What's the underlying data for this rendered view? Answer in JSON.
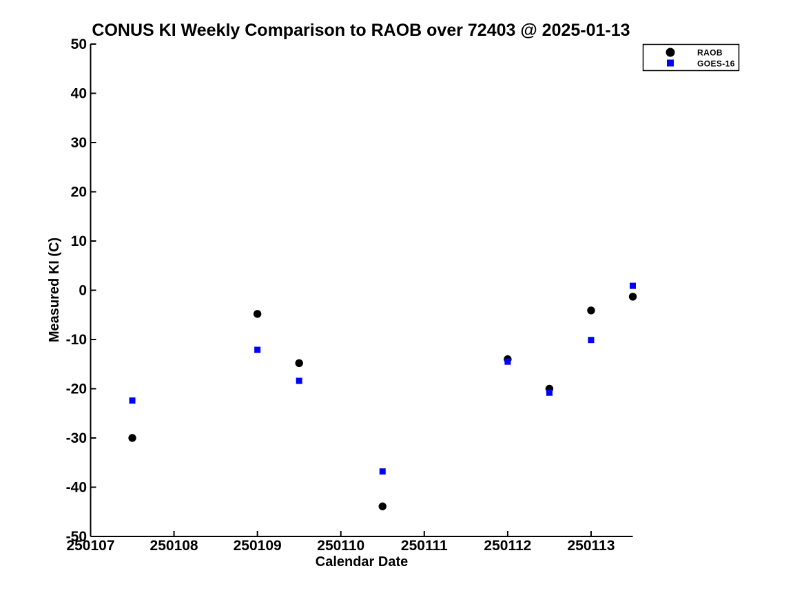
{
  "chart_data": {
    "type": "scatter",
    "title": "CONUS KI Weekly Comparison to RAOB over 72403 @ 2025-01-13",
    "xlabel": "Calendar Date",
    "ylabel": "Measured KI (C)",
    "xlim": [
      250107,
      250113.5
    ],
    "ylim": [
      -50,
      50
    ],
    "xticks": [
      250107,
      250108,
      250109,
      250110,
      250111,
      250112,
      250113
    ],
    "yticks": [
      -50,
      -40,
      -30,
      -20,
      -10,
      0,
      10,
      20,
      30,
      40,
      50
    ],
    "grid": false,
    "background_color": "#ffffff",
    "legend": {
      "position": "top-right",
      "entries": [
        {
          "label": "RAOB",
          "marker": "circle",
          "color": "#000000"
        },
        {
          "label": "GOES-16",
          "marker": "square",
          "color": "#0000ff"
        }
      ]
    },
    "series": [
      {
        "name": "RAOB",
        "marker": "circle",
        "color": "#000000",
        "points": [
          [
            250107.5,
            -30.0
          ],
          [
            250109.0,
            -4.8
          ],
          [
            250109.5,
            -14.8
          ],
          [
            250110.5,
            -43.9
          ],
          [
            250112.0,
            -14.0
          ],
          [
            250112.5,
            -20.0
          ],
          [
            250113.0,
            -4.1
          ],
          [
            250113.5,
            -1.3
          ]
        ]
      },
      {
        "name": "GOES-16",
        "marker": "square",
        "color": "#0000ff",
        "points": [
          [
            250107.5,
            -22.4
          ],
          [
            250109.0,
            -12.1
          ],
          [
            250109.5,
            -18.4
          ],
          [
            250110.5,
            -36.8
          ],
          [
            250112.0,
            -14.5
          ],
          [
            250112.5,
            -20.8
          ],
          [
            250113.0,
            -10.1
          ],
          [
            250113.5,
            0.9
          ]
        ]
      }
    ]
  }
}
